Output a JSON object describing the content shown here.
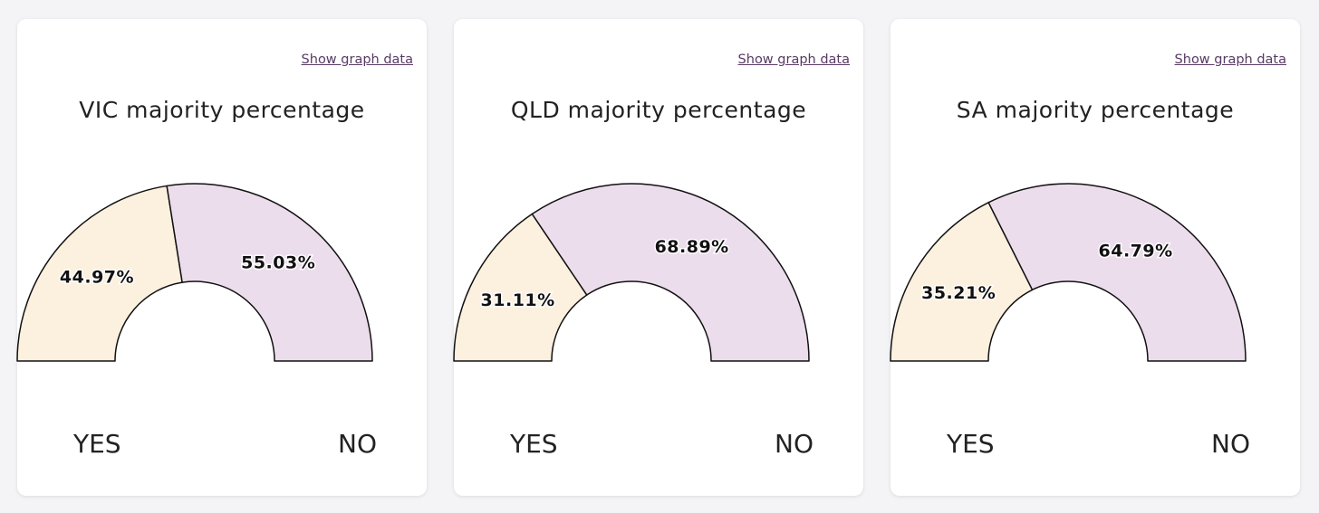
{
  "colors": {
    "yes": "#fcf0df",
    "no": "#ecddec",
    "outline": "#111111"
  },
  "link_label": "Show graph data",
  "chart_data": [
    {
      "type": "pie",
      "variant": "half-donut gauge",
      "title": "VIC majority percentage",
      "categories": [
        "YES",
        "NO"
      ],
      "values": [
        44.97,
        55.03
      ],
      "labels": [
        "44.97%",
        "55.03%"
      ]
    },
    {
      "type": "pie",
      "variant": "half-donut gauge",
      "title": "QLD majority percentage",
      "categories": [
        "YES",
        "NO"
      ],
      "values": [
        31.11,
        68.89
      ],
      "labels": [
        "31.11%",
        "68.89%"
      ]
    },
    {
      "type": "pie",
      "variant": "half-donut gauge",
      "title": "SA majority percentage",
      "categories": [
        "YES",
        "NO"
      ],
      "values": [
        35.21,
        64.79
      ],
      "labels": [
        "35.21%",
        "64.79%"
      ]
    }
  ]
}
